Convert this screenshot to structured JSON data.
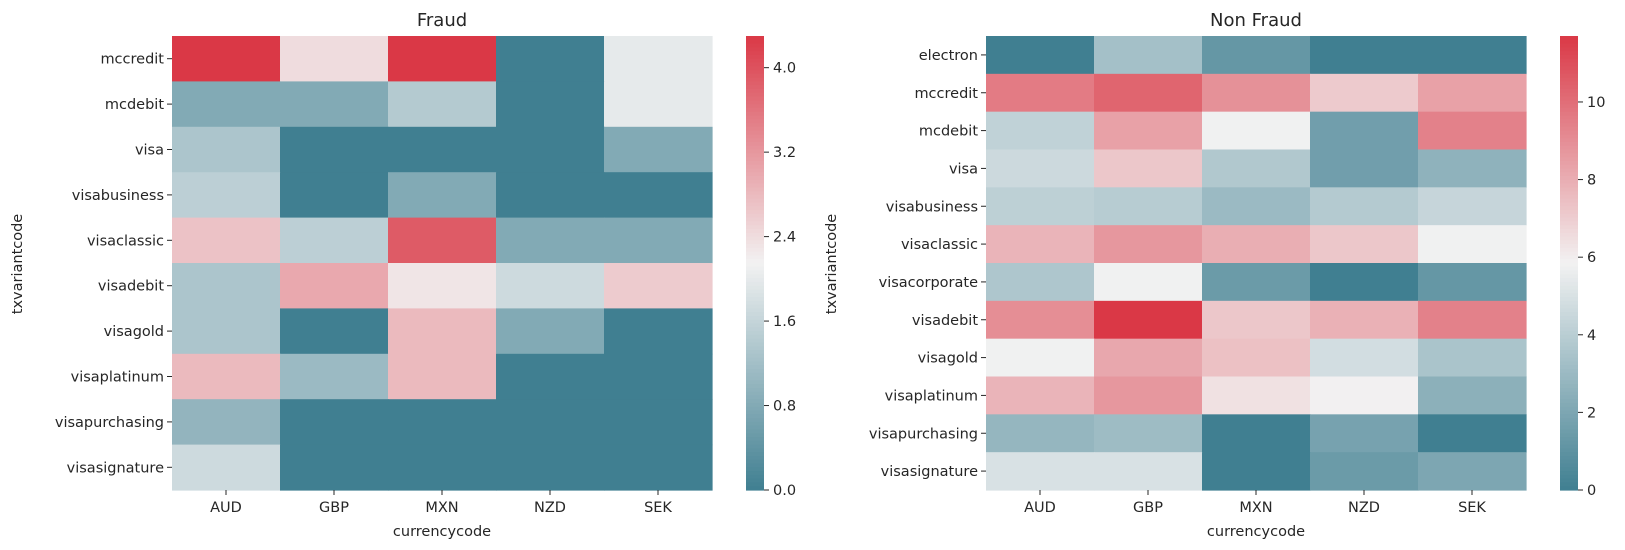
{
  "chart_data": [
    {
      "type": "heatmap",
      "title": "Fraud",
      "xlabel": "currencycode",
      "ylabel": "txvariantcode",
      "x_categories": [
        "AUD",
        "GBP",
        "MXN",
        "NZD",
        "SEK"
      ],
      "y_categories": [
        "mccredit",
        "mcdebit",
        "visa",
        "visabusiness",
        "visaclassic",
        "visadebit",
        "visagold",
        "visaplatinum",
        "visapurchasing",
        "visasignature"
      ],
      "values": [
        [
          4.3,
          2.4,
          4.3,
          0.0,
          2.0
        ],
        [
          0.8,
          0.8,
          1.4,
          0.0,
          2.0
        ],
        [
          1.3,
          0.0,
          0.0,
          0.0,
          0.8
        ],
        [
          1.5,
          0.0,
          0.8,
          0.0,
          0.0
        ],
        [
          2.7,
          1.5,
          3.9,
          0.8,
          0.8
        ],
        [
          1.3,
          3.0,
          2.3,
          1.7,
          2.6
        ],
        [
          1.3,
          0.0,
          2.8,
          0.8,
          0.0
        ],
        [
          2.8,
          1.1,
          2.8,
          0.0,
          0.0
        ],
        [
          1.0,
          0.0,
          0.0,
          0.0,
          0.0
        ],
        [
          1.7,
          0.0,
          0.0,
          0.0,
          0.0
        ]
      ],
      "vmin": 0,
      "vmax": 4.3,
      "colorbar_ticks": [
        "0.0",
        "0.8",
        "1.6",
        "2.4",
        "3.2",
        "4.0"
      ]
    },
    {
      "type": "heatmap",
      "title": "Non Fraud",
      "xlabel": "currencycode",
      "ylabel": "txvariantcode",
      "x_categories": [
        "AUD",
        "GBP",
        "MXN",
        "NZD",
        "SEK"
      ],
      "y_categories": [
        "electron",
        "mccredit",
        "mcdebit",
        "visa",
        "visabusiness",
        "visaclassic",
        "visacorporate",
        "visadebit",
        "visagold",
        "visaplatinum",
        "visapurchasing",
        "visasignature"
      ],
      "values": [
        [
          0.0,
          3.3,
          1.2,
          0.0,
          0.0
        ],
        [
          9.6,
          10.3,
          8.9,
          7.1,
          8.4
        ],
        [
          4.2,
          8.4,
          5.8,
          1.6,
          9.4
        ],
        [
          4.6,
          7.2,
          3.7,
          1.6,
          2.6
        ],
        [
          4.1,
          3.9,
          3.0,
          3.8,
          4.4
        ],
        [
          7.8,
          8.7,
          8.0,
          7.2,
          5.8
        ],
        [
          3.6,
          5.8,
          1.4,
          0.0,
          1.2
        ],
        [
          9.0,
          11.7,
          7.2,
          7.9,
          9.4
        ],
        [
          5.8,
          8.2,
          7.4,
          4.8,
          3.5
        ],
        [
          7.8,
          8.7,
          6.4,
          5.9,
          2.5
        ],
        [
          2.8,
          3.1,
          0.0,
          1.8,
          0.0
        ],
        [
          5.0,
          5.0,
          0.0,
          1.4,
          2.0
        ]
      ],
      "vmin": 0,
      "vmax": 11.7,
      "colorbar_ticks": [
        "0",
        "2",
        "4",
        "6",
        "8",
        "10"
      ]
    }
  ]
}
